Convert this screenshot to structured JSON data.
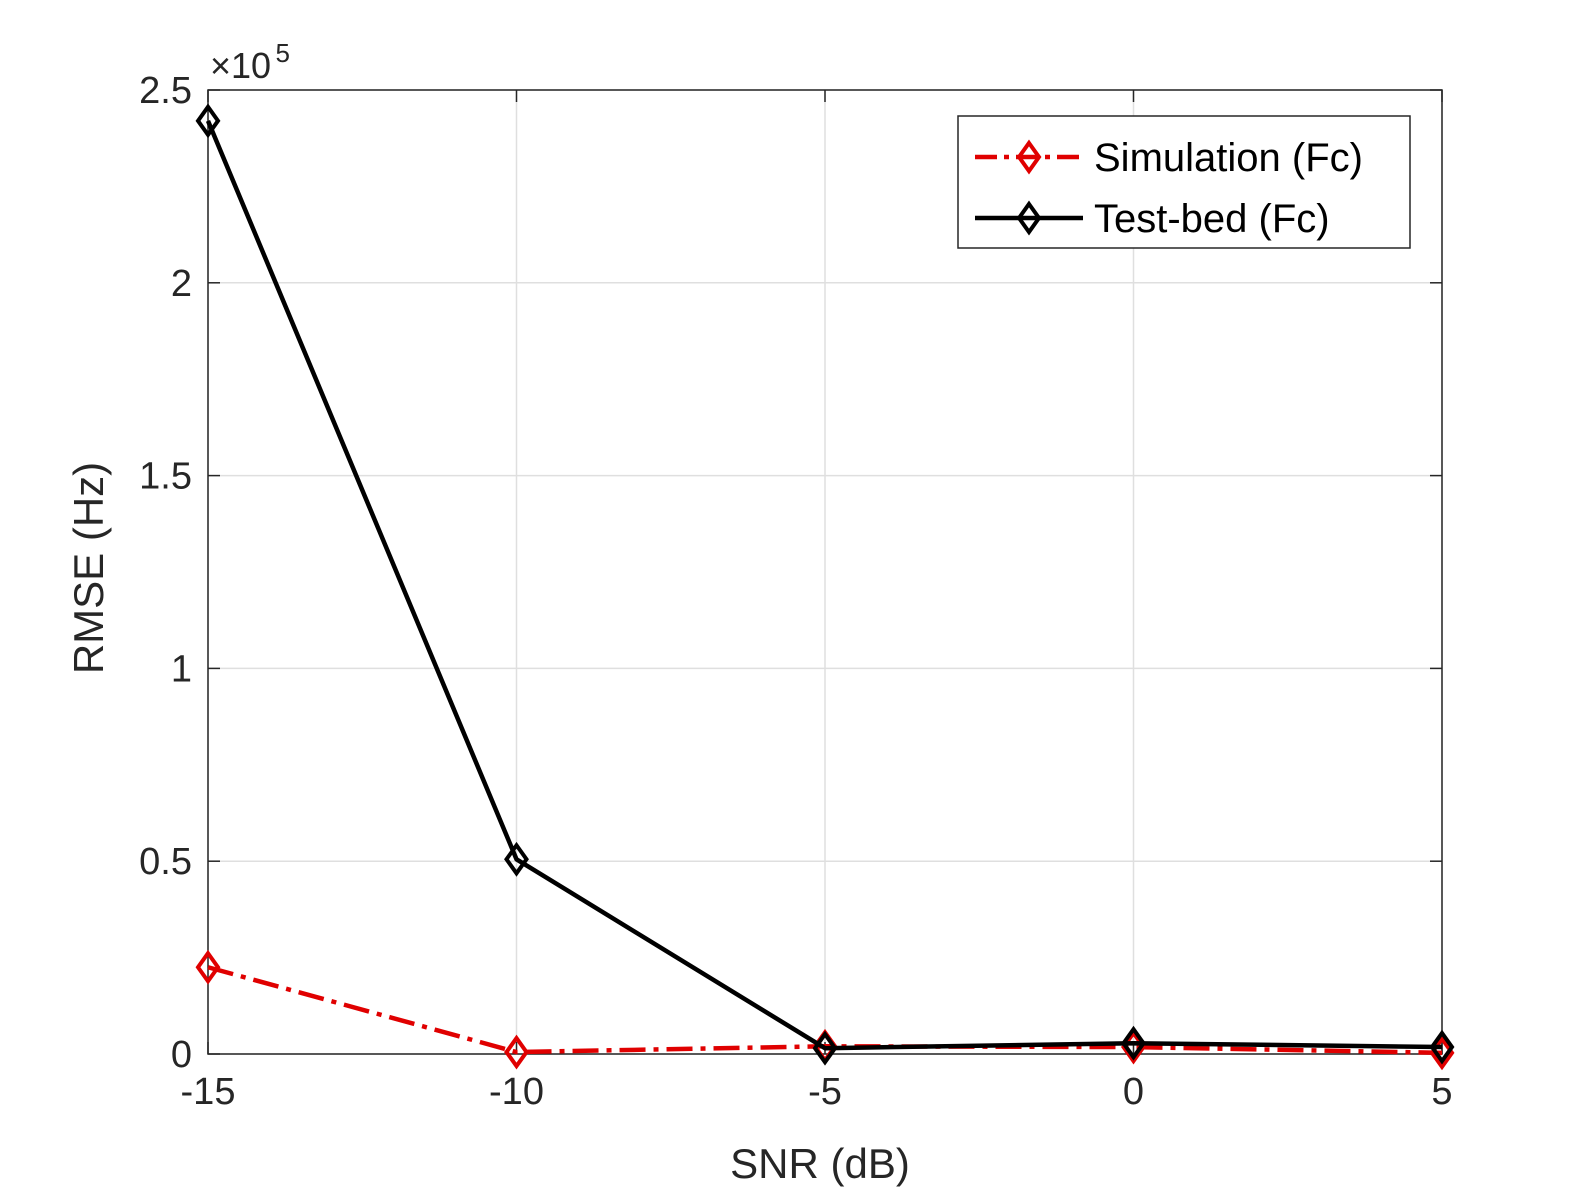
{
  "chart_data": {
    "type": "line",
    "title": "",
    "xlabel": "SNR (dB)",
    "ylabel": "RMSE (Hz)",
    "x": [
      -15,
      -10,
      -5,
      0,
      5
    ],
    "xlim": [
      -15,
      5
    ],
    "ylim": [
      0,
      250000
    ],
    "xticks": [
      -15,
      -10,
      -5,
      0,
      5
    ],
    "xtick_labels": [
      "-15",
      "-10",
      "-5",
      "0",
      "5"
    ],
    "yticks": [
      0,
      50000,
      100000,
      150000,
      200000,
      250000
    ],
    "ytick_labels": [
      "0",
      "0.5",
      "1",
      "1.5",
      "2",
      "2.5"
    ],
    "y_multiplier": {
      "base": "×10",
      "exponent": "5"
    },
    "grid": true,
    "legend_position": "top-right",
    "series": [
      {
        "name": "Simulation (Fc)",
        "color": "#e00000",
        "line_style": "dash-dot",
        "marker": "diamond",
        "values": [
          22500,
          500,
          2000,
          1800,
          300
        ]
      },
      {
        "name": "Test-bed (Fc)",
        "color": "#000000",
        "line_style": "solid",
        "marker": "diamond",
        "values": [
          242000,
          50500,
          1500,
          2800,
          1800
        ]
      }
    ]
  }
}
